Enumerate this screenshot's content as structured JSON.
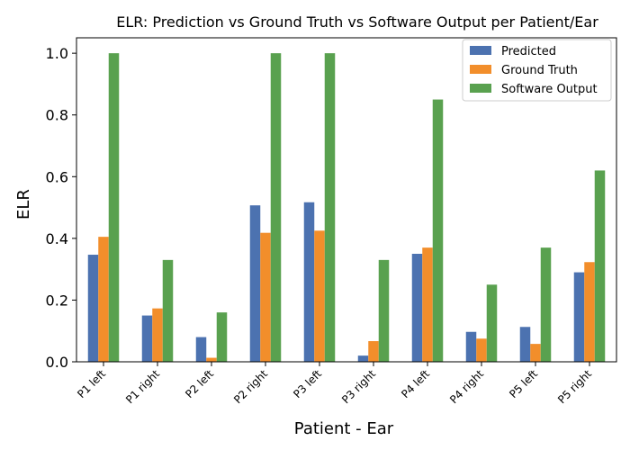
{
  "chart_data": {
    "type": "bar",
    "title": "ELR: Prediction vs Ground Truth vs Software Output per Patient/Ear",
    "xlabel": "Patient - Ear",
    "ylabel": "ELR",
    "ylim": [
      0,
      1.05
    ],
    "yticks": [
      0.0,
      0.2,
      0.4,
      0.6,
      0.8,
      1.0
    ],
    "ytick_labels": [
      "0.0",
      "0.2",
      "0.4",
      "0.6",
      "0.8",
      "1.0"
    ],
    "categories": [
      "P1 left",
      "P1 right",
      "P2 left",
      "P2 right",
      "P3 left",
      "P3 right",
      "P4 left",
      "P4 right",
      "P5 left",
      "P5 right"
    ],
    "legend_position": "top-right",
    "series": [
      {
        "name": "Predicted",
        "color": "#4c72b0",
        "values": [
          0.347,
          0.15,
          0.08,
          0.507,
          0.517,
          0.02,
          0.35,
          0.097,
          0.113,
          0.29
        ]
      },
      {
        "name": "Ground Truth",
        "color": "#f28e2b",
        "values": [
          0.405,
          0.173,
          0.013,
          0.418,
          0.425,
          0.067,
          0.37,
          0.075,
          0.058,
          0.323
        ]
      },
      {
        "name": "Software Output",
        "color": "#59a14f",
        "values": [
          1.0,
          0.33,
          0.16,
          1.0,
          1.0,
          0.33,
          0.85,
          0.25,
          0.37,
          0.62
        ]
      }
    ]
  }
}
